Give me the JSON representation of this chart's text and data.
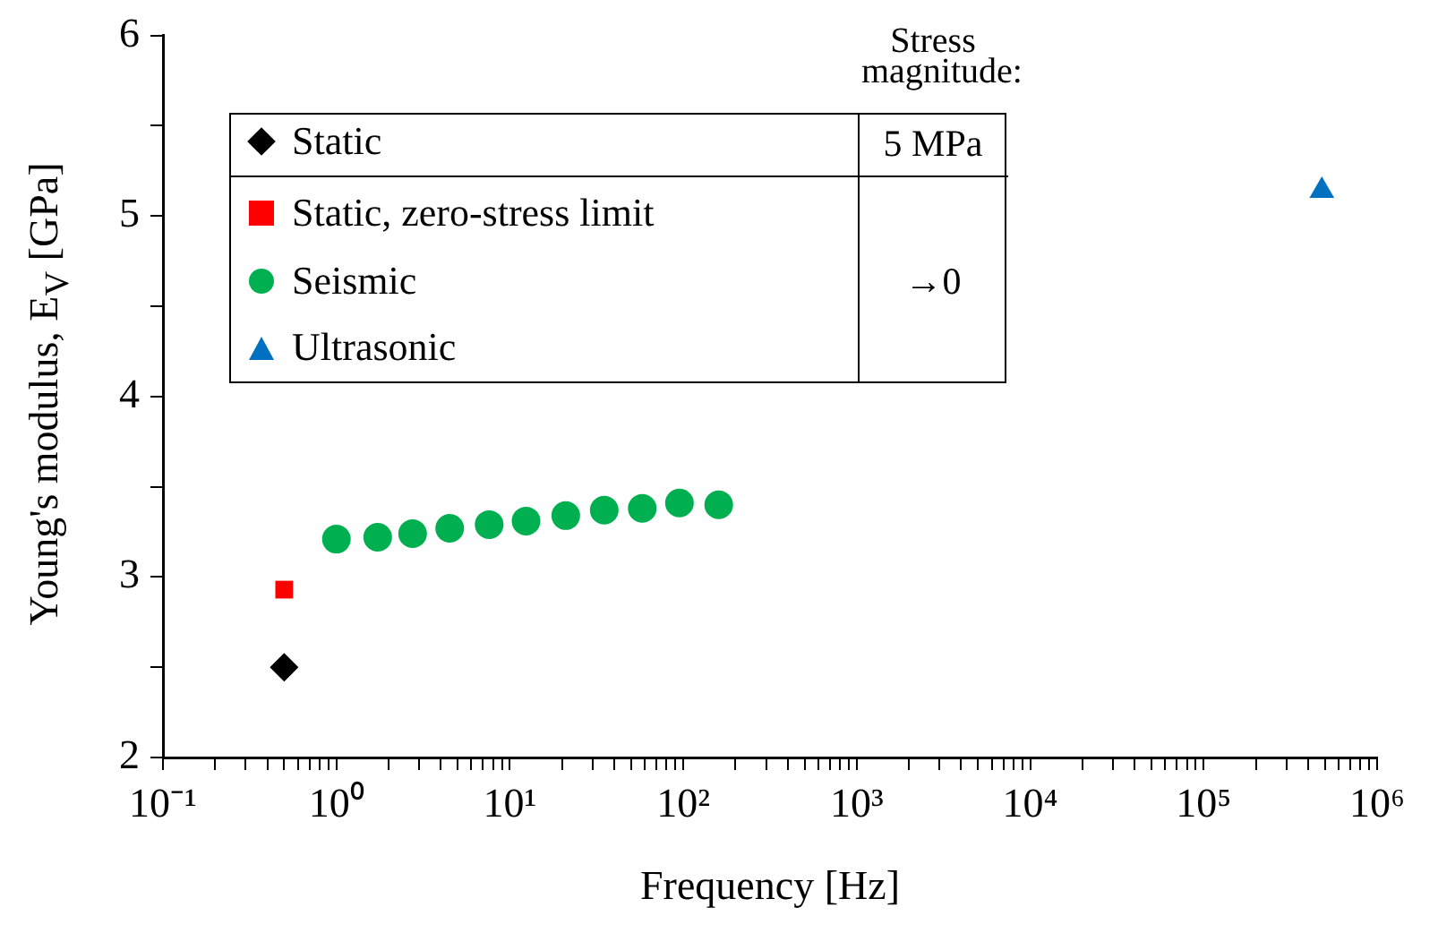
{
  "chart_data": {
    "type": "scatter",
    "xlabel": "Frequency [Hz]",
    "ylabel": "Young's modulus, E$_{V}$ [GPa]",
    "log": "x",
    "grid": false,
    "legend": "top left",
    "xlim": [
      0.1,
      1000000
    ],
    "ylim": [
      2,
      6
    ],
    "xticks": [
      {
        "value": 0.1,
        "label": "10⁻¹"
      },
      {
        "value": 0.2,
        "label": null
      },
      {
        "value": 0.3,
        "label": null
      },
      {
        "value": 0.4,
        "label": null
      },
      {
        "value": 0.5,
        "label": null
      },
      {
        "value": 0.6,
        "label": null
      },
      {
        "value": 0.7,
        "label": null
      },
      {
        "value": 0.8,
        "label": null
      },
      {
        "value": 0.9,
        "label": null
      },
      {
        "value": 1,
        "label": "10⁰"
      },
      {
        "value": 2,
        "label": null
      },
      {
        "value": 3,
        "label": null
      },
      {
        "value": 4,
        "label": null
      },
      {
        "value": 5,
        "label": null
      },
      {
        "value": 6,
        "label": null
      },
      {
        "value": 7,
        "label": null
      },
      {
        "value": 8,
        "label": null
      },
      {
        "value": 9,
        "label": null
      },
      {
        "value": 10,
        "label": "10¹"
      },
      {
        "value": 20,
        "label": null
      },
      {
        "value": 30,
        "label": null
      },
      {
        "value": 40,
        "label": null
      },
      {
        "value": 50,
        "label": null
      },
      {
        "value": 60,
        "label": null
      },
      {
        "value": 70,
        "label": null
      },
      {
        "value": 80,
        "label": null
      },
      {
        "value": 90,
        "label": null
      },
      {
        "value": 100,
        "label": "10²"
      },
      {
        "value": 200,
        "label": null
      },
      {
        "value": 300,
        "label": null
      },
      {
        "value": 400,
        "label": null
      },
      {
        "value": 500,
        "label": null
      },
      {
        "value": 600,
        "label": null
      },
      {
        "value": 700,
        "label": null
      },
      {
        "value": 800,
        "label": null
      },
      {
        "value": 900,
        "label": null
      },
      {
        "value": 1000,
        "label": "10³"
      },
      {
        "value": 2000,
        "label": null
      },
      {
        "value": 3000,
        "label": null
      },
      {
        "value": 4000,
        "label": null
      },
      {
        "value": 5000,
        "label": null
      },
      {
        "value": 6000,
        "label": null
      },
      {
        "value": 7000,
        "label": null
      },
      {
        "value": 8000,
        "label": null
      },
      {
        "value": 9000,
        "label": null
      },
      {
        "value": 10000,
        "label": "10⁴"
      },
      {
        "value": 20000,
        "label": null
      },
      {
        "value": 30000,
        "label": null
      },
      {
        "value": 40000,
        "label": null
      },
      {
        "value": 50000,
        "label": null
      },
      {
        "value": 60000,
        "label": null
      },
      {
        "value": 70000,
        "label": null
      },
      {
        "value": 80000,
        "label": null
      },
      {
        "value": 90000,
        "label": null
      },
      {
        "value": 100000,
        "label": "10⁵"
      },
      {
        "value": 200000,
        "label": null
      },
      {
        "value": 300000,
        "label": null
      },
      {
        "value": 400000,
        "label": null
      },
      {
        "value": 500000,
        "label": null
      },
      {
        "value": 600000,
        "label": null
      },
      {
        "value": 700000,
        "label": null
      },
      {
        "value": 800000,
        "label": null
      },
      {
        "value": 900000,
        "label": null
      },
      {
        "value": 1000000,
        "label": "10⁶"
      }
    ],
    "yticks": [
      2,
      {
        "value": 2.5,
        "label": null
      },
      3,
      {
        "value": 3.5,
        "label": null
      },
      4,
      {
        "value": 4.5,
        "label": null
      },
      5,
      {
        "value": 5.5,
        "label": null
      },
      6
    ],
    "annotations": [
      "Stress magnitude:",
      "5 MPa",
      "→0"
    ],
    "series": [
      {
        "name": "Static",
        "color": "#000000",
        "marker": "diamond",
        "x": [
          0.5
        ],
        "values": [
          2.5
        ]
      },
      {
        "name": "Static, zero-stress limit",
        "color": "#ff0000",
        "marker": "square",
        "x": [
          0.5
        ],
        "values": [
          2.93
        ]
      },
      {
        "name": "Seismic",
        "color": "#00b050",
        "marker": "circle",
        "x": [
          1,
          1.73,
          2.75,
          4.5,
          7.6,
          12.4,
          21,
          35,
          58,
          95,
          160
        ],
        "values": [
          3.21,
          3.22,
          3.24,
          3.27,
          3.29,
          3.31,
          3.34,
          3.37,
          3.38,
          3.41,
          3.4
        ]
      },
      {
        "name": "Ultrasonic",
        "color": "#0070c0",
        "marker": "triangle",
        "x": [
          480000
        ],
        "values": [
          5.14
        ]
      }
    ]
  }
}
